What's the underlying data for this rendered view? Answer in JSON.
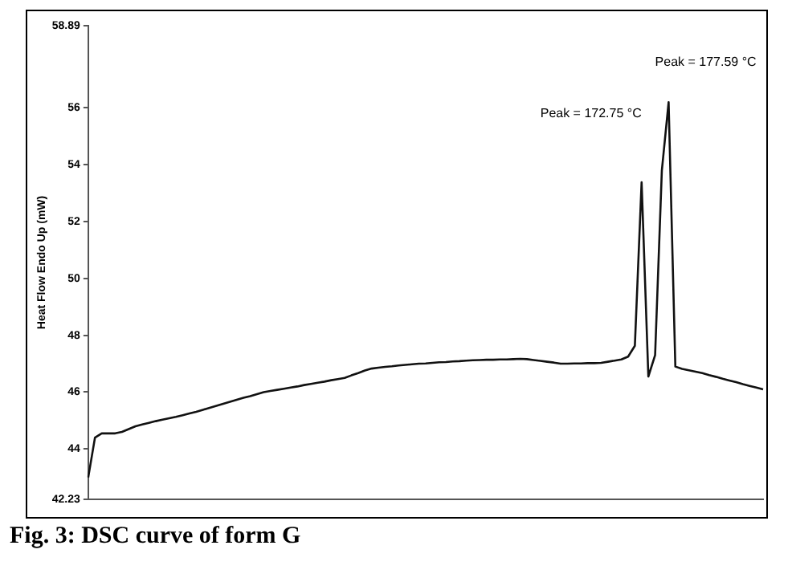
{
  "chart_data": {
    "type": "line",
    "title": "Fig. 3: DSC curve of form G",
    "ylabel": "Heat Flow Endo Up (mW)",
    "categories": [
      null,
      null,
      null,
      null,
      null,
      null,
      null,
      null,
      null,
      null,
      null,
      null,
      null,
      null,
      null,
      null,
      null,
      null,
      null,
      null,
      null,
      null,
      null,
      null,
      null,
      null,
      null,
      null,
      null,
      null,
      null,
      null,
      null,
      null,
      null,
      null,
      null,
      null,
      null,
      null,
      null,
      null,
      null,
      null,
      null,
      null,
      null,
      null,
      null,
      null,
      null,
      null,
      null,
      null,
      null,
      null,
      null,
      null,
      null,
      null,
      null,
      null,
      null,
      null,
      null,
      null,
      null,
      null,
      null,
      null,
      null,
      null,
      null,
      null,
      null,
      null,
      null,
      null,
      null,
      null,
      null,
      null,
      null,
      null,
      null,
      null,
      null,
      null,
      null,
      null,
      null,
      null,
      null,
      null,
      null,
      null,
      null,
      null,
      null,
      null,
      null
    ],
    "ylim": [
      42.23,
      58.89
    ],
    "yticks": [
      42.23,
      44,
      46,
      48,
      50,
      52,
      54,
      56,
      58.89
    ],
    "tick_labels": "y",
    "grid": false,
    "legend": false,
    "marker": "none",
    "line_style": "solid",
    "series": [
      {
        "color": "#111111",
        "values": [
          43.0,
          44.4,
          44.55,
          44.55,
          44.55,
          44.6,
          44.7,
          44.8,
          44.86,
          44.92,
          44.98,
          45.03,
          45.08,
          45.13,
          45.19,
          45.25,
          45.31,
          45.38,
          45.45,
          45.52,
          45.59,
          45.66,
          45.73,
          45.8,
          45.86,
          45.93,
          46.0,
          46.04,
          46.08,
          46.12,
          46.16,
          46.2,
          46.25,
          46.29,
          46.33,
          46.37,
          46.42,
          46.46,
          46.5,
          46.59,
          46.67,
          46.76,
          46.83,
          46.86,
          46.89,
          46.91,
          46.94,
          46.96,
          46.98,
          47.0,
          47.01,
          47.03,
          47.05,
          47.06,
          47.08,
          47.09,
          47.11,
          47.12,
          47.13,
          47.14,
          47.14,
          47.15,
          47.15,
          47.16,
          47.17,
          47.16,
          47.13,
          47.1,
          47.07,
          47.04,
          47.0,
          47.0,
          47.01,
          47.01,
          47.02,
          47.02,
          47.03,
          47.07,
          47.11,
          47.15,
          47.25,
          47.63,
          53.38,
          46.55,
          47.3,
          53.8,
          56.2,
          46.9,
          46.82,
          46.77,
          46.72,
          46.67,
          46.6,
          46.54,
          46.47,
          46.41,
          46.35,
          46.28,
          46.22,
          46.16,
          46.1
        ]
      }
    ],
    "annotations": [
      "Peak = 172.75 °C",
      "Peak = 177.59 °C"
    ]
  }
}
